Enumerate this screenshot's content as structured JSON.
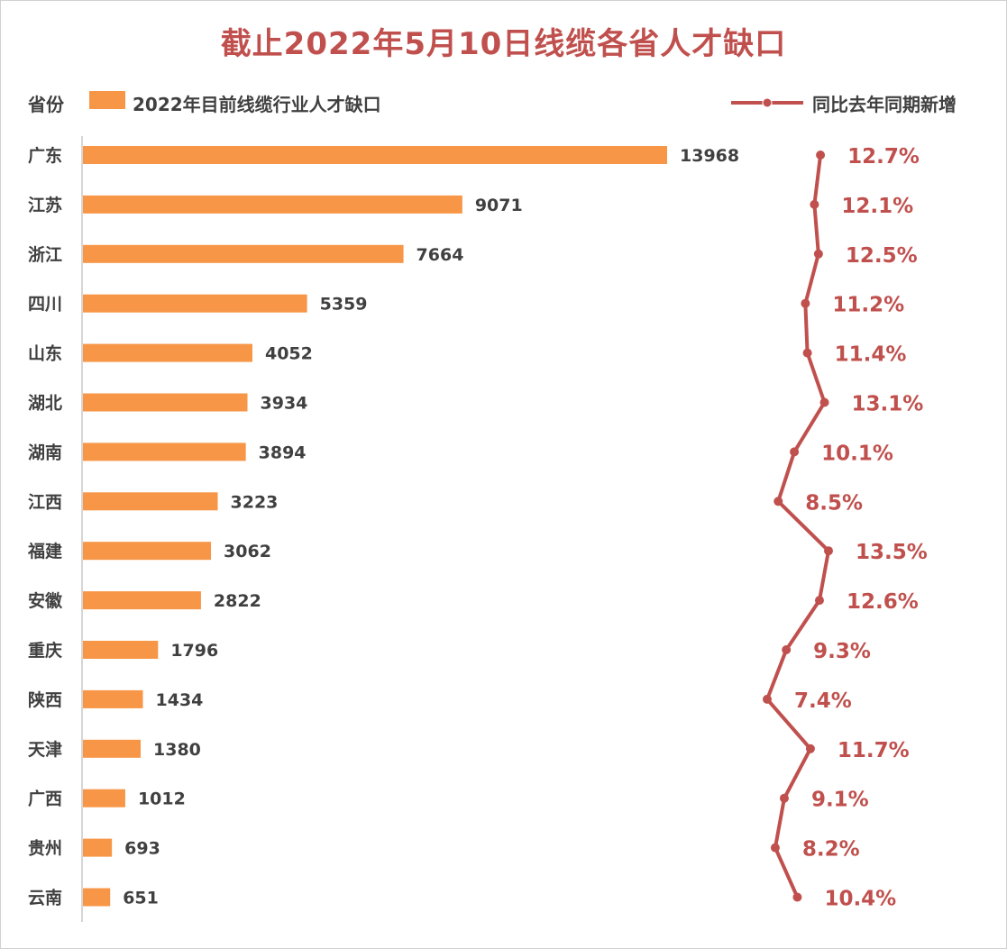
{
  "title": "截止2022年5月10日线缆各省人才缺口",
  "legend": {
    "province_header": "省份",
    "bar_label": "2022年目前线缆行业人才缺口",
    "line_label": "同比去年同期新增"
  },
  "colors": {
    "bar": "#f79646",
    "line": "#c0504d",
    "title": "#c0504d",
    "axis": "#c8c8c8"
  },
  "chart_data": {
    "type": "bar",
    "orientation": "horizontal",
    "title": "截止2022年5月10日线缆各省人才缺口",
    "categories": [
      "广东",
      "江苏",
      "浙江",
      "四川",
      "山东",
      "湖北",
      "湖南",
      "江西",
      "福建",
      "安徽",
      "重庆",
      "陕西",
      "天津",
      "广西",
      "贵州",
      "云南"
    ],
    "series": [
      {
        "name": "2022年目前线缆行业人才缺口",
        "type": "bar",
        "values": [
          13968,
          9071,
          7664,
          5359,
          4052,
          3934,
          3894,
          3223,
          3062,
          2822,
          1796,
          1434,
          1380,
          1012,
          693,
          651
        ]
      },
      {
        "name": "同比去年同期新增",
        "type": "line",
        "values": [
          12.7,
          12.1,
          12.5,
          11.2,
          11.4,
          13.1,
          10.1,
          8.5,
          13.5,
          12.6,
          9.3,
          7.4,
          11.7,
          9.1,
          8.2,
          10.4
        ],
        "labels": [
          "12.7%",
          "12.1%",
          "12.5%",
          "11.2%",
          "11.4%",
          "13.1%",
          "10.1%",
          "8.5%",
          "13.5%",
          "12.6%",
          "9.3%",
          "7.4%",
          "11.7%",
          "9.1%",
          "8.2%",
          "10.4%"
        ]
      }
    ],
    "legend_position": "top",
    "grid": false
  }
}
